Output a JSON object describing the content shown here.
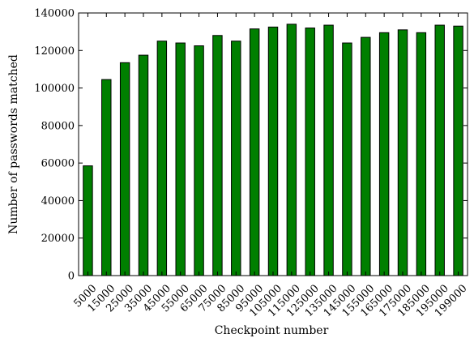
{
  "chart_data": {
    "type": "bar",
    "title": "",
    "xlabel": "Checkpoint number",
    "ylabel": "Number of passwords matched",
    "categories": [
      "5000",
      "15000",
      "25000",
      "35000",
      "45000",
      "55000",
      "65000",
      "75000",
      "85000",
      "95000",
      "105000",
      "115000",
      "125000",
      "135000",
      "145000",
      "155000",
      "165000",
      "175000",
      "185000",
      "195000",
      "199000"
    ],
    "values": [
      58500,
      104500,
      113500,
      117500,
      125000,
      124000,
      122500,
      128000,
      125000,
      131500,
      132500,
      134000,
      132000,
      133500,
      124000,
      127000,
      129500,
      131000,
      129500,
      133500,
      133000
    ],
    "ylim": [
      0,
      140000
    ],
    "yticks": [
      0,
      20000,
      40000,
      60000,
      80000,
      100000,
      120000,
      140000
    ],
    "bar_color": "#007f00",
    "grid": false,
    "legend": "none"
  }
}
